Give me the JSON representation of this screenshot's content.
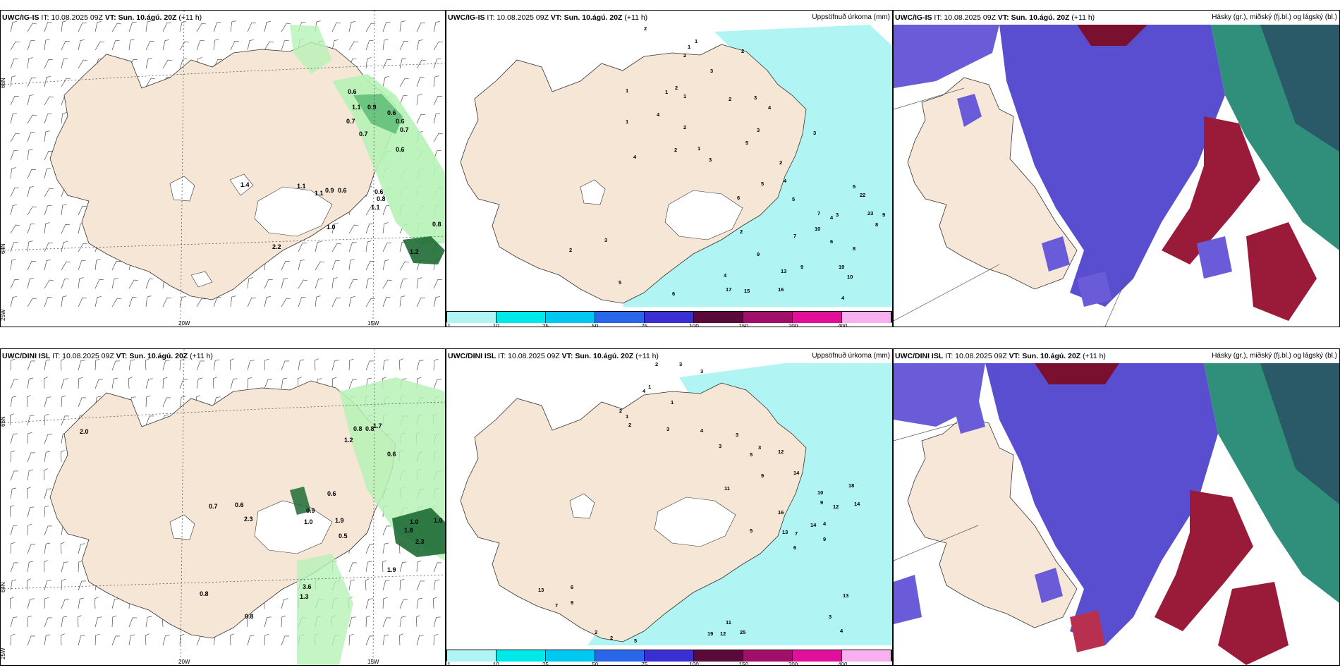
{
  "colors": {
    "land": "#f5e6d6",
    "sea": "#ffffff",
    "precip_light": "#b6f2b6",
    "precip_mid": "#62c07a",
    "precip_dark": "#1e6b35",
    "accum": "#b0f4f4",
    "cloud_high": "#2f8f7a",
    "cloud_mid": "#6a5bd8",
    "cloud_low": "#9a1a3a"
  },
  "rows": [
    {
      "model": "UWC/IG-IS",
      "it_label": "IT: 10.08.2025 09Z",
      "vt_label": "VT: Sun. 10.ágú. 20Z",
      "lead": "(+11 h)",
      "precip_labels": [
        "0.6",
        "1.1",
        "0.9",
        "0.6",
        "0.7",
        "0.6",
        "0.7",
        "0.7",
        "1.4",
        "0.6",
        "1.1",
        "0.9",
        "0.6",
        "0.6",
        "0.8",
        "1.1",
        "1.0",
        "2.2",
        "0.8",
        "1.2",
        "1.1"
      ],
      "accum_labels": [
        "2",
        "1",
        "1",
        "2",
        "2",
        "3",
        "2",
        "1",
        "1",
        "1",
        "2",
        "3",
        "4",
        "2",
        "4",
        "3",
        "1",
        "5",
        "4",
        "2",
        "1",
        "3",
        "2",
        "3",
        "4",
        "5",
        "6",
        "5",
        "5",
        "4",
        "7",
        "3",
        "2",
        "6",
        "8",
        "7",
        "9",
        "10",
        "22",
        "23",
        "9",
        "8",
        "13",
        "9",
        "16",
        "19",
        "17",
        "15",
        "10",
        "4",
        "5",
        "6",
        "4",
        "3",
        "2"
      ]
    },
    {
      "model": "UWC/DINI ISL",
      "it_label": "IT: 10.08.2025 09Z",
      "vt_label": "VT: Sun. 10.ágú. 20Z",
      "lead": "(+11 h)",
      "precip_labels": [
        "2.0",
        "0.8",
        "0.8",
        "1.7",
        "1.2",
        "0.6",
        "0.7",
        "0.6",
        "2.3",
        "0.6",
        "0.9",
        "1.0",
        "1.9",
        "0.5",
        "1.0",
        "1.0",
        "0.8",
        "0.8",
        "3.6",
        "1.3",
        "1.9",
        "1.8",
        "2.3"
      ],
      "accum_labels": [
        "2",
        "3",
        "3",
        "1",
        "4",
        "2",
        "1",
        "1",
        "2",
        "3",
        "4",
        "3",
        "3",
        "3",
        "12",
        "5",
        "14",
        "9",
        "11",
        "10",
        "9",
        "18",
        "12",
        "14",
        "16",
        "13",
        "14",
        "4",
        "9",
        "7",
        "5",
        "6",
        "13",
        "7",
        "9",
        "6",
        "11",
        "19",
        "12",
        "25",
        "4",
        "3",
        "13",
        "2",
        "2",
        "5"
      ]
    }
  ],
  "accum_title": "Uppsöfnuð úrkoma (mm)",
  "cloud_title": "Hásky (gr.), miðský (fj.bl.) og lágský (bl.)",
  "axis_labels": {
    "lat_66": "66N",
    "lat_64": "64N",
    "lon_25": "25W",
    "lon_20": "20W",
    "lon_15": "15W"
  },
  "legend": {
    "ticks": [
      "1",
      "10",
      "25",
      "50",
      "75",
      "100",
      "150",
      "200",
      "400"
    ],
    "colors": [
      "#b0f4f4",
      "#00e8e8",
      "#00c8f0",
      "#2a66e8",
      "#3a2fd0",
      "#5a0a3a",
      "#a0106a",
      "#e0109a",
      "#f8b0f0"
    ]
  }
}
